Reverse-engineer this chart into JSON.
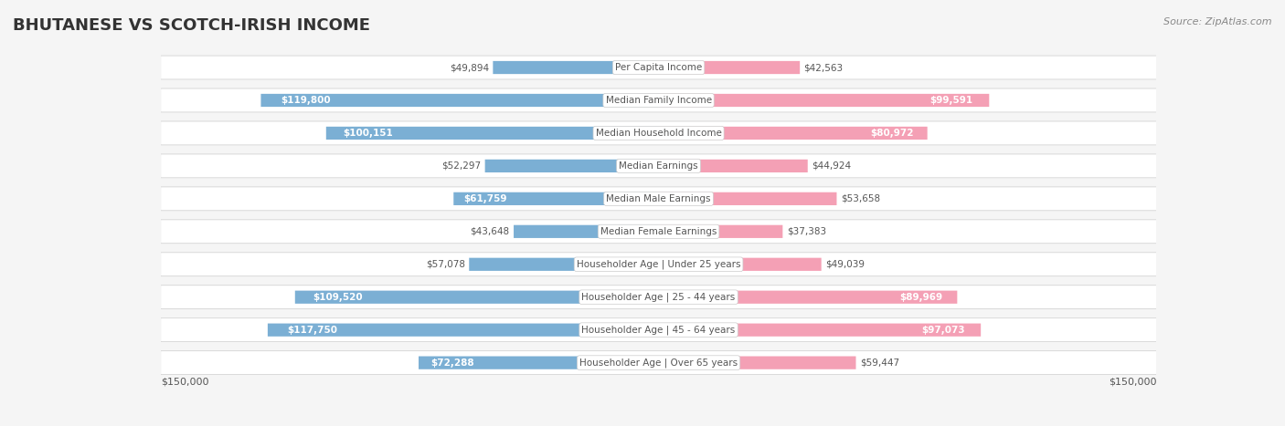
{
  "title": "BHUTANESE VS SCOTCH-IRISH INCOME",
  "source": "Source: ZipAtlas.com",
  "max_value": 150000,
  "categories": [
    "Per Capita Income",
    "Median Family Income",
    "Median Household Income",
    "Median Earnings",
    "Median Male Earnings",
    "Median Female Earnings",
    "Householder Age | Under 25 years",
    "Householder Age | 25 - 44 years",
    "Householder Age | 45 - 64 years",
    "Householder Age | Over 65 years"
  ],
  "bhutanese_values": [
    49894,
    119800,
    100151,
    52297,
    61759,
    43648,
    57078,
    109520,
    117750,
    72288
  ],
  "scotch_irish_values": [
    42563,
    99591,
    80972,
    44924,
    53658,
    37383,
    49039,
    89969,
    97073,
    59447
  ],
  "bhutanese_color": "#7bafd4",
  "scotch_irish_color": "#f4a0b5",
  "bhutanese_color_dark": "#5a9ec8",
  "scotch_irish_color_dark": "#f07090",
  "bg_color": "#f5f5f5",
  "row_bg": "#ffffff",
  "row_alt_bg": "#f0f0f0",
  "label_color_inside": "#ffffff",
  "label_color_outside": "#555555",
  "center_label_bg": "#ffffff",
  "center_label_color": "#555555",
  "threshold_inside": 60000
}
